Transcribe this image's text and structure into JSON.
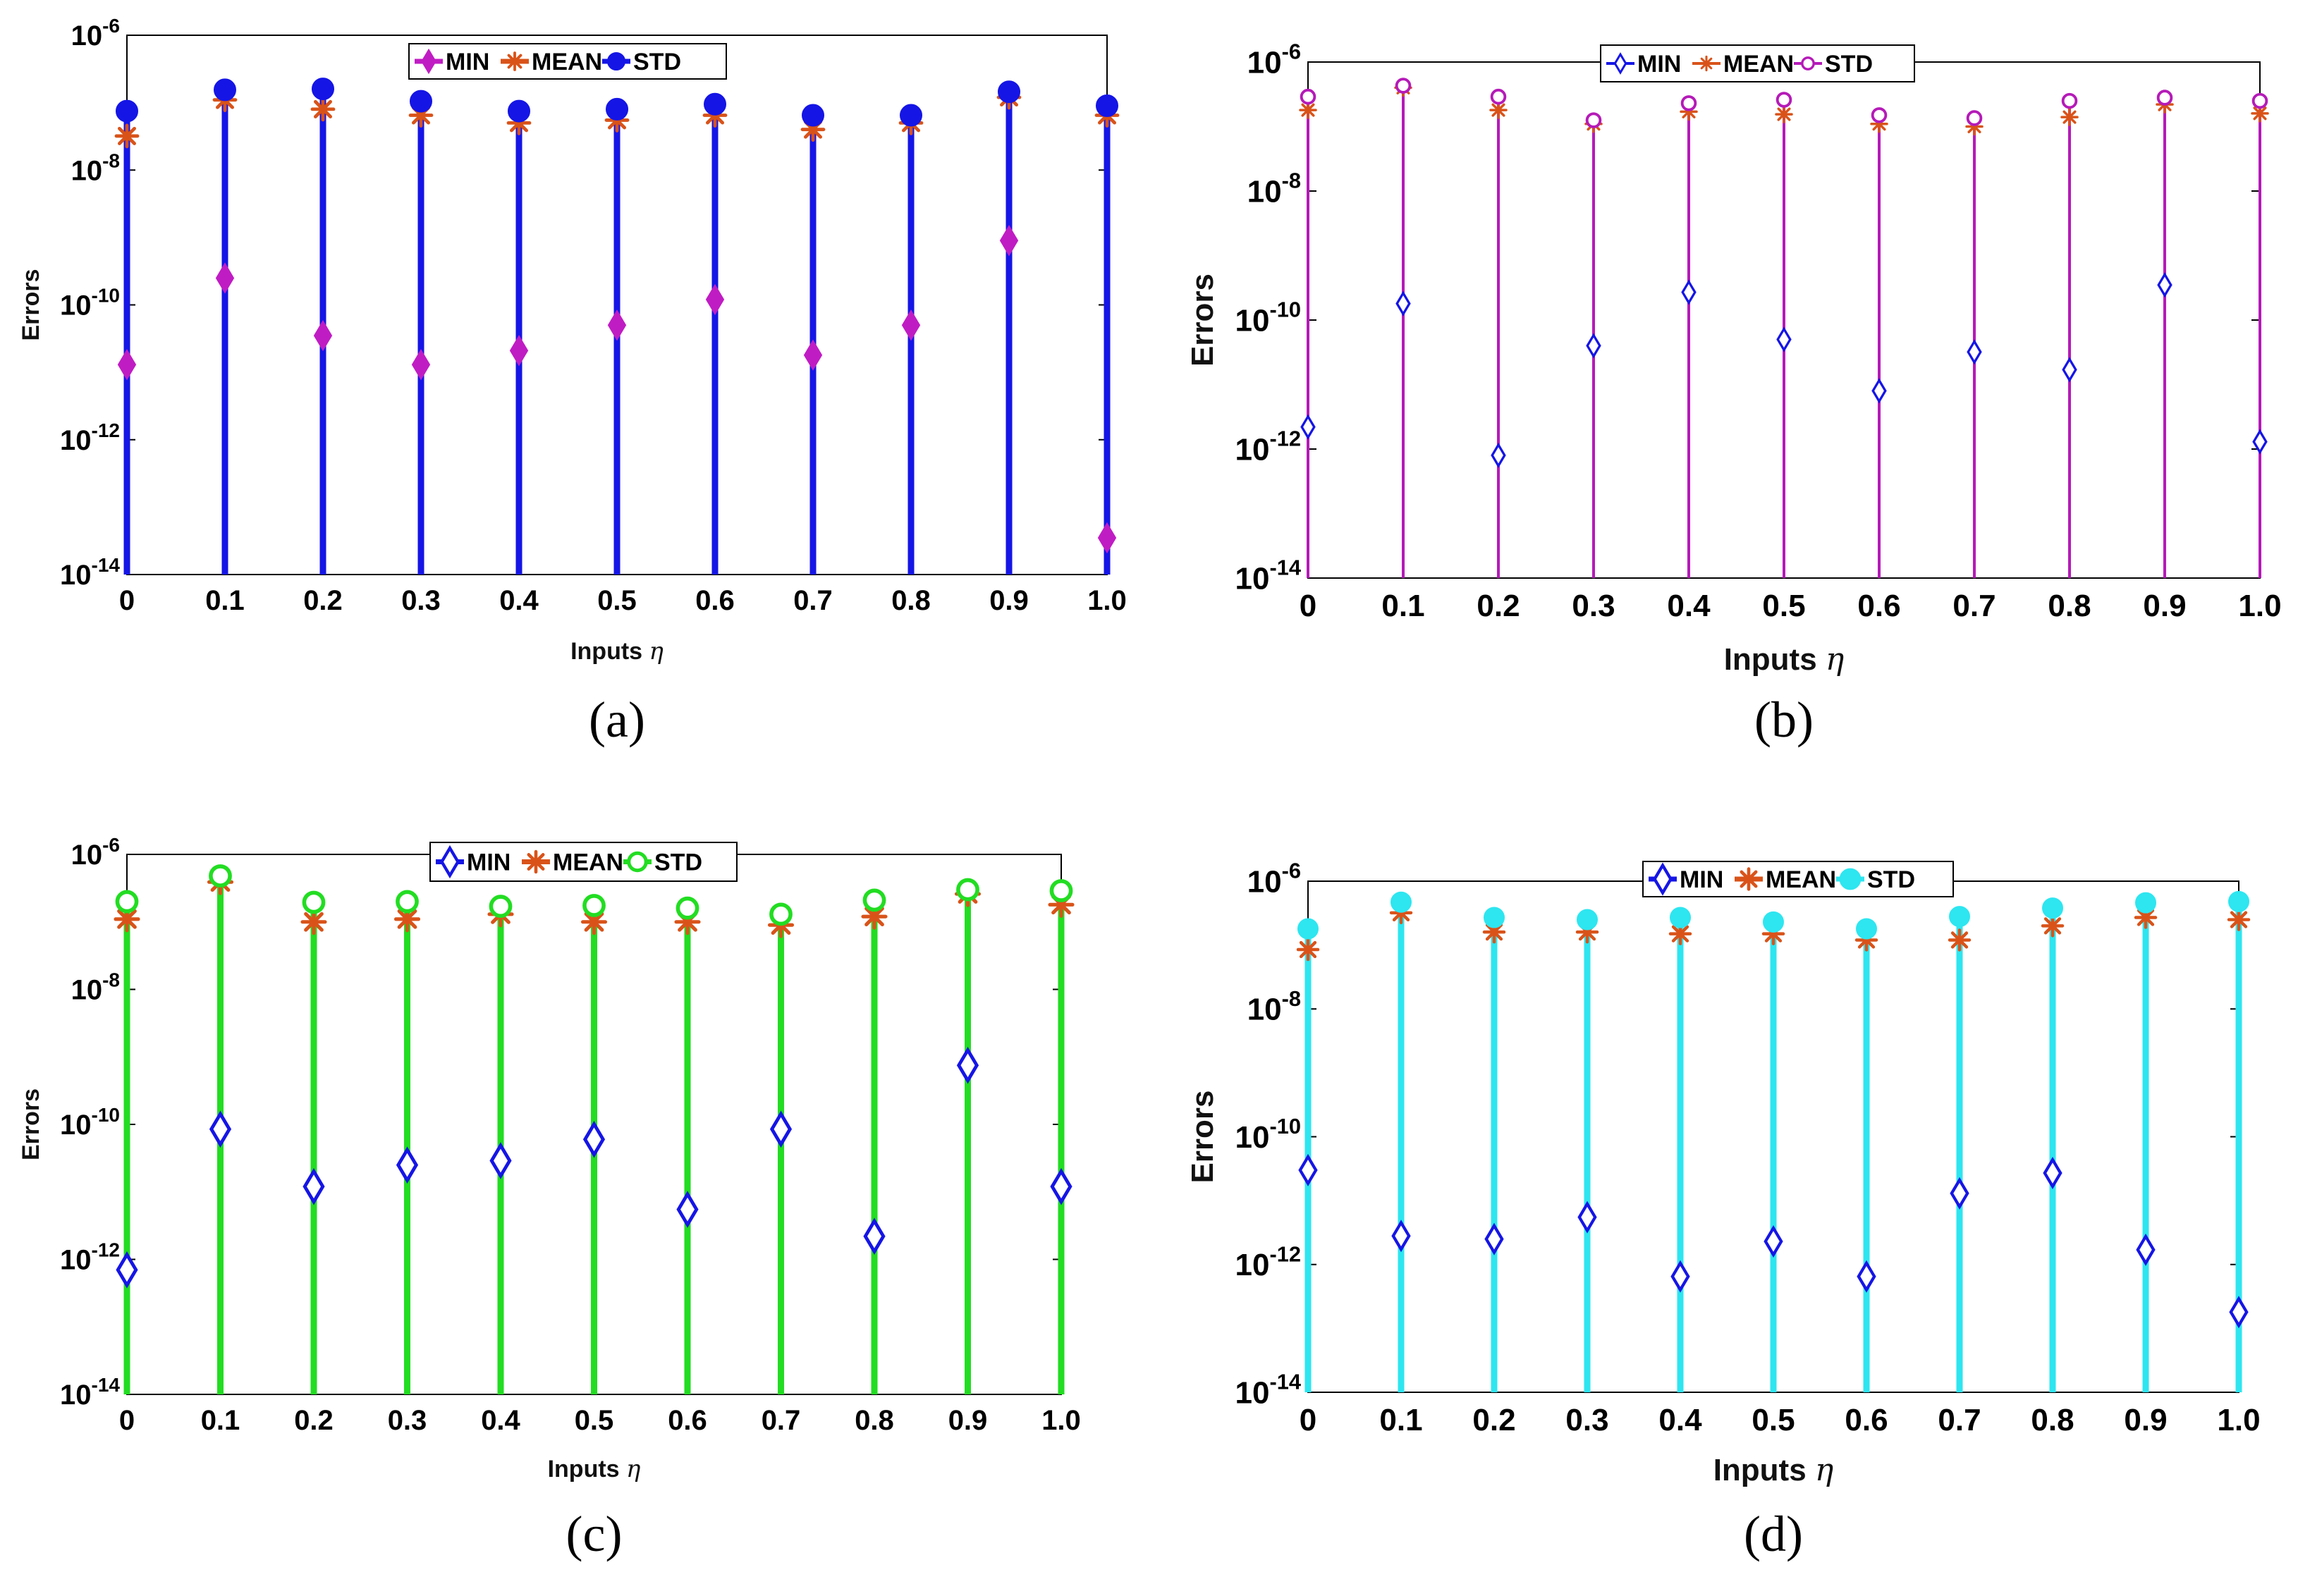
{
  "figure": {
    "chart_data": [
      {
        "type": "stem",
        "panel_label": "(a)",
        "xlabel": "Inputs",
        "xlabel_symbol": "η",
        "ylabel": "Errors",
        "yscale": "log",
        "ylim": [
          1e-14,
          1e-06
        ],
        "y_ticks": [
          {
            "base": "10",
            "exp": "-14"
          },
          {
            "base": "10",
            "exp": "-12"
          },
          {
            "base": "10",
            "exp": "-10"
          },
          {
            "base": "10",
            "exp": "-8"
          },
          {
            "base": "10",
            "exp": "-6"
          }
        ],
        "categories": [
          "0",
          "0.1",
          "0.2",
          "0.3",
          "0.4",
          "0.5",
          "0.6",
          "0.7",
          "0.8",
          "0.9",
          "1.0"
        ],
        "legend_position": "top-center",
        "series": [
          {
            "name": "MIN",
            "marker": "diamond-filled",
            "color": "#c01cc4",
            "values": [
              1.3e-11,
              2.5e-10,
              3.5e-11,
              1.3e-11,
              2.1e-11,
              5e-11,
              1.2e-10,
              1.8e-11,
              5e-11,
              9e-10,
              3.5e-14
            ]
          },
          {
            "name": "MEAN",
            "marker": "asterisk",
            "color": "#d95319",
            "values": [
              3.2e-08,
              1.1e-07,
              8e-08,
              6.5e-08,
              5e-08,
              5.5e-08,
              6.5e-08,
              4e-08,
              5e-08,
              1.2e-07,
              6.5e-08
            ]
          },
          {
            "name": "STD",
            "marker": "circle-filled",
            "color": "#1515e6",
            "values": [
              7.5e-08,
              1.55e-07,
              1.6e-07,
              1.05e-07,
              7.5e-08,
              8e-08,
              9.5e-08,
              6.5e-08,
              6.5e-08,
              1.45e-07,
              9e-08
            ]
          }
        ],
        "stem_color": "#1515e6"
      },
      {
        "type": "stem",
        "panel_label": "(b)",
        "xlabel": "Inputs",
        "xlabel_symbol": "η",
        "ylabel": "Errors",
        "yscale": "log",
        "ylim": [
          1e-14,
          1e-06
        ],
        "y_ticks": [
          {
            "base": "10",
            "exp": "-14"
          },
          {
            "base": "10",
            "exp": "-12"
          },
          {
            "base": "10",
            "exp": "-10"
          },
          {
            "base": "10",
            "exp": "-8"
          },
          {
            "base": "10",
            "exp": "-6"
          }
        ],
        "categories": [
          "0",
          "0.1",
          "0.2",
          "0.3",
          "0.4",
          "0.5",
          "0.6",
          "0.7",
          "0.8",
          "0.9",
          "1.0"
        ],
        "legend_position": "top-center",
        "series": [
          {
            "name": "MIN",
            "marker": "diamond-open",
            "color": "#1515e6",
            "values": [
              2.2e-12,
              1.8e-10,
              8e-13,
              4e-11,
              2.7e-10,
              5e-11,
              8e-12,
              3.2e-11,
              1.7e-11,
              3.5e-10,
              1.3e-12
            ]
          },
          {
            "name": "MEAN",
            "marker": "asterisk",
            "color": "#d95319",
            "values": [
              1.8e-07,
              4e-07,
              1.8e-07,
              1.1e-07,
              1.7e-07,
              1.55e-07,
              1.1e-07,
              1e-07,
              1.4e-07,
              2.2e-07,
              1.6e-07
            ]
          },
          {
            "name": "STD",
            "marker": "circle-open",
            "color": "#b51ab8",
            "values": [
              2.9e-07,
              4.3e-07,
              2.9e-07,
              1.25e-07,
              2.3e-07,
              2.6e-07,
              1.5e-07,
              1.35e-07,
              2.5e-07,
              2.8e-07,
              2.5e-07
            ]
          }
        ],
        "stem_color": "#b51ab8"
      },
      {
        "type": "stem",
        "panel_label": "(c)",
        "xlabel": "Inputs",
        "xlabel_symbol": "η",
        "ylabel": "Errors",
        "yscale": "log",
        "ylim": [
          1e-14,
          1e-06
        ],
        "y_ticks": [
          {
            "base": "10",
            "exp": "-14"
          },
          {
            "base": "10",
            "exp": "-12"
          },
          {
            "base": "10",
            "exp": "-10"
          },
          {
            "base": "10",
            "exp": "-8"
          },
          {
            "base": "10",
            "exp": "-6"
          }
        ],
        "categories": [
          "0",
          "0.1",
          "0.2",
          "0.3",
          "0.4",
          "0.5",
          "0.6",
          "0.7",
          "0.8",
          "0.9",
          "1.0"
        ],
        "legend_position": "top-center",
        "series": [
          {
            "name": "MIN",
            "marker": "diamond-open",
            "color": "#1515e6",
            "values": [
              7e-13,
              8.5e-11,
              1.2e-11,
              2.5e-11,
              2.9e-11,
              6e-11,
              5.5e-12,
              8.5e-11,
              2.2e-12,
              7.5e-10,
              1.2e-11
            ]
          },
          {
            "name": "MEAN",
            "marker": "asterisk",
            "color": "#d95319",
            "values": [
              1.1e-07,
              3.9e-07,
              1e-07,
              1.1e-07,
              1.3e-07,
              1e-07,
              1e-07,
              9e-08,
              1.2e-07,
              2.6e-07,
              1.8e-07
            ]
          },
          {
            "name": "STD",
            "marker": "circle-open",
            "color": "#22dd22",
            "values": [
              2e-07,
              4.8e-07,
              1.95e-07,
              2e-07,
              1.7e-07,
              1.75e-07,
              1.6e-07,
              1.3e-07,
              2.1e-07,
              3e-07,
              2.9e-07
            ]
          }
        ],
        "stem_color": "#22dd22"
      },
      {
        "type": "stem",
        "panel_label": "(d)",
        "xlabel": "Inputs",
        "xlabel_symbol": "η",
        "ylabel": "Errors",
        "yscale": "log",
        "ylim": [
          1e-14,
          1e-06
        ],
        "y_ticks": [
          {
            "base": "10",
            "exp": "-14"
          },
          {
            "base": "10",
            "exp": "-12"
          },
          {
            "base": "10",
            "exp": "-10"
          },
          {
            "base": "10",
            "exp": "-8"
          },
          {
            "base": "10",
            "exp": "-6"
          }
        ],
        "categories": [
          "0",
          "0.1",
          "0.2",
          "0.3",
          "0.4",
          "0.5",
          "0.6",
          "0.7",
          "0.8",
          "0.9",
          "1.0"
        ],
        "legend_position": "top-center",
        "series": [
          {
            "name": "MIN",
            "marker": "diamond-open",
            "color": "#1515e6",
            "values": [
              3e-11,
              2.8e-12,
              2.5e-12,
              5.5e-12,
              6.5e-13,
              2.3e-12,
              6.5e-13,
              1.3e-11,
              2.7e-11,
              1.7e-12,
              1.8e-13
            ]
          },
          {
            "name": "MEAN",
            "marker": "asterisk",
            "color": "#d95319",
            "values": [
              8.5e-08,
              3.2e-07,
              1.6e-07,
              1.6e-07,
              1.5e-07,
              1.5e-07,
              1.2e-07,
              1.2e-07,
              2e-07,
              2.7e-07,
              2.5e-07
            ]
          },
          {
            "name": "STD",
            "marker": "circle-filled",
            "color": "#2de6f0",
            "values": [
              1.8e-07,
              4.7e-07,
              2.7e-07,
              2.5e-07,
              2.7e-07,
              2.3e-07,
              1.8e-07,
              2.8e-07,
              3.8e-07,
              4.6e-07,
              4.8e-07
            ]
          }
        ],
        "stem_color": "#2de6f0"
      }
    ]
  }
}
